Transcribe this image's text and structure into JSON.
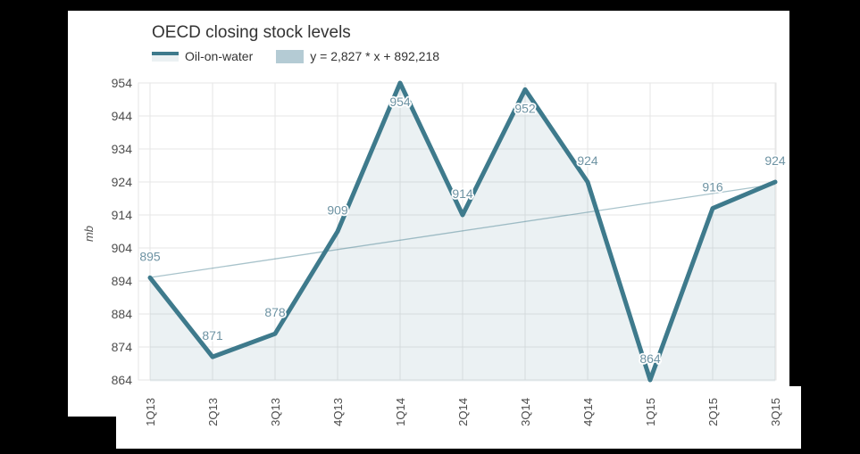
{
  "title": "OECD closing stock levels",
  "legend": {
    "series_label": "Oil-on-water",
    "trend_label": "y = 2,827 * x + 892,218"
  },
  "y_axis_title": "mb",
  "chart_data": {
    "type": "line",
    "title": "OECD closing stock levels",
    "ylabel": "mb",
    "categories": [
      "1Q13",
      "2Q13",
      "3Q13",
      "4Q13",
      "1Q14",
      "2Q14",
      "3Q14",
      "4Q14",
      "1Q15",
      "2Q15",
      "3Q15"
    ],
    "series": [
      {
        "name": "Oil-on-water",
        "type": "area-line",
        "values": [
          895,
          871,
          878,
          909,
          954,
          914,
          952,
          924,
          864,
          916,
          924
        ]
      },
      {
        "name": "trend",
        "type": "straight-line",
        "equation": "y = 2,827 * x + 892,218",
        "slope": 2.827,
        "intercept": 892.218
      }
    ],
    "ylim": [
      864,
      954
    ],
    "ytick_step": 10,
    "yticks": [
      864,
      874,
      884,
      894,
      904,
      914,
      924,
      934,
      944,
      954
    ],
    "grid": true,
    "legend_position": "top-left",
    "data_labels": true
  },
  "colors": {
    "series_line": "#3E7A8C",
    "area_fill": "rgba(62,122,140,0.10)",
    "trend_line": "rgba(62,122,140,0.45)",
    "data_label": "#6E93A3",
    "legend_trend_box": "#B4CBD4",
    "grid": "#E6E6E6",
    "axis_text": "#4D4D4D",
    "title_text": "#333333"
  }
}
